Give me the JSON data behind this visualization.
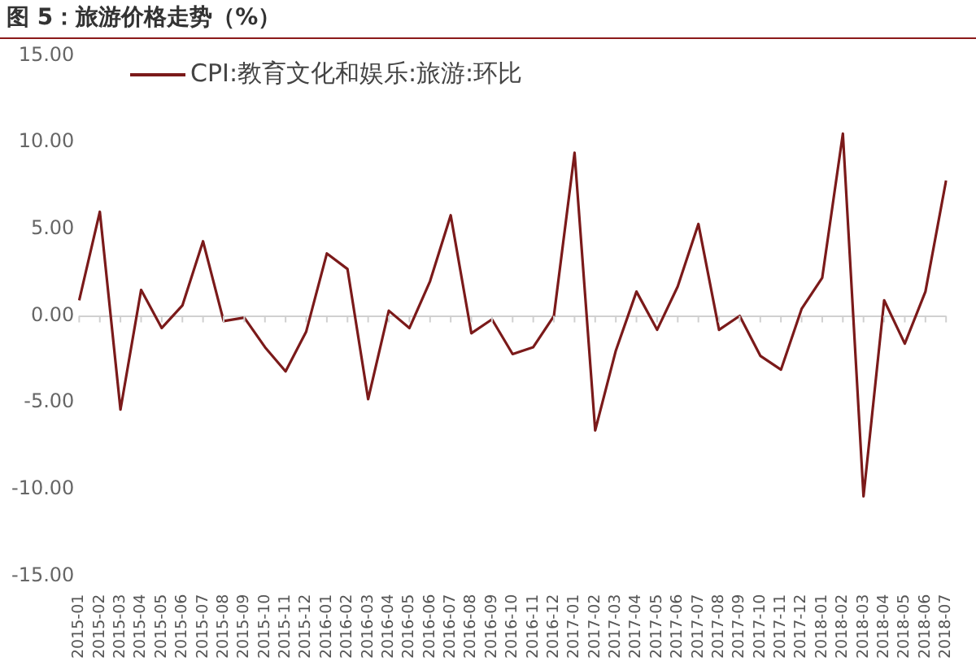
{
  "chart_data": {
    "type": "line",
    "title": "图 5：旅游价格走势（%）",
    "categories": [
      "2015-01",
      "2015-02",
      "2015-03",
      "2015-04",
      "2015-05",
      "2015-06",
      "2015-07",
      "2015-08",
      "2015-09",
      "2015-10",
      "2015-11",
      "2015-12",
      "2016-01",
      "2016-02",
      "2016-03",
      "2016-04",
      "2016-05",
      "2016-06",
      "2016-07",
      "2016-08",
      "2016-09",
      "2016-10",
      "2016-11",
      "2016-12",
      "2017-01",
      "2017-02",
      "2017-03",
      "2017-04",
      "2017-05",
      "2017-06",
      "2017-07",
      "2017-08",
      "2017-09",
      "2017-10",
      "2017-11",
      "2017-12",
      "2018-01",
      "2018-02",
      "2018-03",
      "2018-04",
      "2018-05",
      "2018-06",
      "2018-07"
    ],
    "series": [
      {
        "name": "CPI:教育文化和娱乐:旅游:环比",
        "color": "#7b1a1a",
        "values": [
          0.9,
          6.0,
          -5.4,
          1.5,
          -0.7,
          0.6,
          4.3,
          -0.3,
          -0.1,
          -1.8,
          -3.2,
          -0.9,
          3.6,
          2.7,
          -4.8,
          0.3,
          -0.7,
          2.0,
          5.8,
          -1.0,
          -0.2,
          -2.2,
          -1.8,
          0.0,
          9.4,
          -6.6,
          -2.0,
          1.4,
          -0.8,
          1.7,
          5.3,
          -0.8,
          0.0,
          -2.3,
          -3.1,
          0.4,
          2.2,
          10.5,
          -10.4,
          0.9,
          -1.6,
          1.4,
          7.8
        ]
      }
    ],
    "ylim": [
      -15,
      15
    ],
    "yticks": [
      {
        "value": -15,
        "label": "-15.00"
      },
      {
        "value": -10,
        "label": "-10.00"
      },
      {
        "value": -5,
        "label": "-5.00"
      },
      {
        "value": 0,
        "label": "0.00"
      },
      {
        "value": 5,
        "label": "5.00"
      },
      {
        "value": 10,
        "label": "10.00"
      },
      {
        "value": 15,
        "label": "15.00"
      }
    ],
    "legend": "top left",
    "marker": "none",
    "line_style": "solid"
  }
}
